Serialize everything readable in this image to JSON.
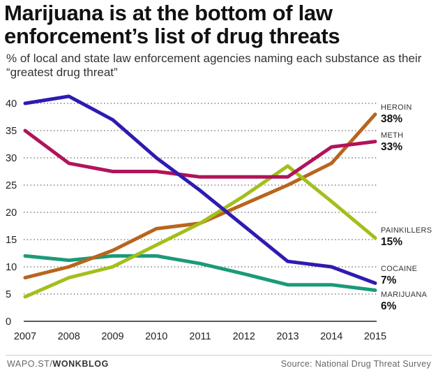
{
  "title": "Marijuana is at the bottom of law enforcement’s list of drug threats",
  "subtitle": "% of local and state law enforcement agencies naming each substance as their “greatest drug threat”",
  "footer": {
    "left_prefix": "WAPO.ST/",
    "left_brand": "WONKBLOG",
    "source": "Source: National Drug Threat Survey"
  },
  "chart_data": {
    "type": "line",
    "x": [
      2007,
      2008,
      2009,
      2010,
      2011,
      2012,
      2013,
      2014,
      2015
    ],
    "ylim": [
      0,
      40
    ],
    "yticks": [
      0,
      5,
      10,
      15,
      20,
      25,
      30,
      35,
      40
    ],
    "grid": "horizontal-dotted",
    "series": [
      {
        "name": "HEROIN",
        "end_label": "38%",
        "color": "#b8651d",
        "values": [
          8,
          10,
          13,
          17,
          18,
          21.5,
          25,
          29,
          38
        ]
      },
      {
        "name": "METH",
        "end_label": "33%",
        "color": "#b0145a",
        "values": [
          35,
          29,
          27.5,
          27.5,
          26.5,
          26.5,
          26.5,
          32,
          33
        ]
      },
      {
        "name": "PAINKILLERS",
        "end_label": "15%",
        "color": "#a3bf1b",
        "values": [
          4.5,
          8,
          10,
          14,
          18,
          23,
          28.5,
          22,
          15.3
        ]
      },
      {
        "name": "COCAINE",
        "end_label": "7%",
        "color": "#2e1bb0",
        "values": [
          40,
          41.3,
          37,
          30,
          24,
          17.5,
          11,
          10,
          7
        ]
      },
      {
        "name": "MARIJUANA",
        "end_label": "6%",
        "color": "#1a9a78",
        "values": [
          12,
          11.2,
          12,
          12,
          10.6,
          8.7,
          6.7,
          6.7,
          5.7
        ]
      }
    ]
  }
}
